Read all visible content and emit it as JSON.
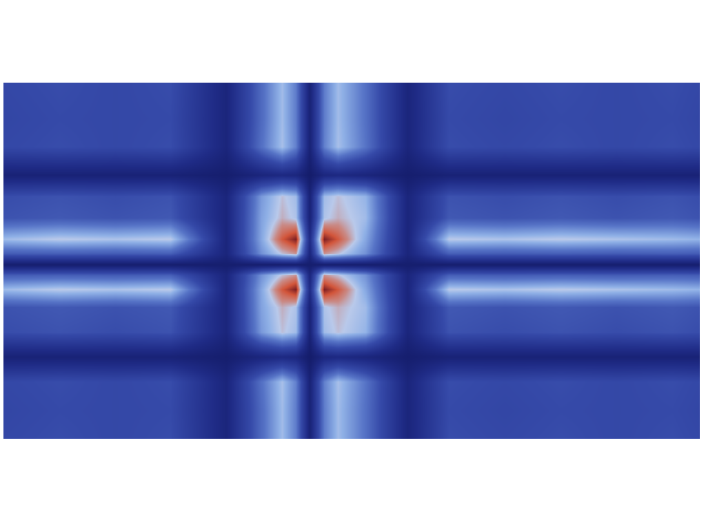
{
  "chart_data": {
    "type": "heatmap",
    "x": [
      0,
      8,
      16,
      24,
      32,
      37,
      40,
      42,
      44,
      46,
      48,
      52,
      58,
      64,
      72,
      80,
      88,
      96,
      100
    ],
    "y": [
      0,
      8,
      16,
      23,
      30,
      37,
      42,
      46,
      49,
      52,
      56,
      62,
      68,
      74,
      82,
      90,
      100
    ],
    "cells": [
      [
        0.38,
        0.4,
        0.38,
        0.4,
        0.15,
        0.5,
        0.7,
        0.55,
        0.12,
        0.55,
        0.7,
        0.52,
        0.15,
        0.4,
        0.38,
        0.4,
        0.38,
        0.4,
        0.38
      ],
      [
        0.37,
        0.39,
        0.38,
        0.39,
        0.15,
        0.5,
        0.7,
        0.55,
        0.12,
        0.55,
        0.7,
        0.52,
        0.15,
        0.39,
        0.37,
        0.39,
        0.38,
        0.39,
        0.37
      ],
      [
        0.38,
        0.4,
        0.38,
        0.4,
        0.15,
        0.52,
        0.71,
        0.56,
        0.12,
        0.56,
        0.71,
        0.53,
        0.15,
        0.4,
        0.38,
        0.4,
        0.38,
        0.4,
        0.38
      ],
      [
        0.12,
        0.12,
        0.12,
        0.12,
        0.08,
        0.15,
        0.18,
        0.16,
        0.06,
        0.16,
        0.18,
        0.15,
        0.08,
        0.12,
        0.12,
        0.12,
        0.12,
        0.12,
        0.12
      ],
      [
        0.4,
        0.42,
        0.4,
        0.42,
        0.15,
        0.62,
        0.75,
        0.7,
        0.12,
        0.7,
        0.75,
        0.68,
        0.15,
        0.42,
        0.4,
        0.42,
        0.4,
        0.42,
        0.4
      ],
      [
        0.42,
        0.44,
        0.42,
        0.44,
        0.15,
        0.64,
        0.77,
        0.72,
        0.12,
        0.72,
        0.77,
        0.7,
        0.15,
        0.44,
        0.42,
        0.44,
        0.42,
        0.44,
        0.42
      ],
      [
        0.7,
        0.74,
        0.72,
        0.74,
        0.15,
        0.65,
        0.9,
        1.0,
        0.2,
        1.0,
        0.9,
        0.65,
        0.15,
        0.74,
        0.72,
        0.74,
        0.72,
        0.7,
        0.68
      ],
      [
        0.45,
        0.46,
        0.45,
        0.46,
        0.15,
        0.6,
        0.75,
        0.8,
        0.15,
        0.8,
        0.75,
        0.6,
        0.15,
        0.46,
        0.45,
        0.46,
        0.45,
        0.46,
        0.45
      ],
      [
        0.08,
        0.08,
        0.08,
        0.08,
        0.08,
        0.08,
        0.08,
        0.08,
        0.08,
        0.08,
        0.08,
        0.08,
        0.08,
        0.08,
        0.08,
        0.08,
        0.08,
        0.08,
        0.08
      ],
      [
        0.45,
        0.46,
        0.45,
        0.46,
        0.15,
        0.6,
        0.75,
        0.8,
        0.15,
        0.8,
        0.75,
        0.6,
        0.15,
        0.46,
        0.45,
        0.46,
        0.45,
        0.46,
        0.45
      ],
      [
        0.7,
        0.74,
        0.72,
        0.74,
        0.15,
        0.65,
        0.9,
        1.0,
        0.2,
        1.0,
        0.9,
        0.65,
        0.15,
        0.74,
        0.72,
        0.74,
        0.72,
        0.7,
        0.68
      ],
      [
        0.42,
        0.44,
        0.42,
        0.44,
        0.15,
        0.64,
        0.77,
        0.72,
        0.12,
        0.72,
        0.77,
        0.7,
        0.15,
        0.44,
        0.42,
        0.44,
        0.42,
        0.44,
        0.42
      ],
      [
        0.4,
        0.42,
        0.4,
        0.42,
        0.15,
        0.62,
        0.75,
        0.7,
        0.12,
        0.7,
        0.75,
        0.68,
        0.15,
        0.42,
        0.4,
        0.42,
        0.4,
        0.42,
        0.4
      ],
      [
        0.12,
        0.12,
        0.12,
        0.12,
        0.08,
        0.15,
        0.18,
        0.16,
        0.06,
        0.16,
        0.18,
        0.15,
        0.08,
        0.12,
        0.12,
        0.12,
        0.12,
        0.12,
        0.12
      ],
      [
        0.38,
        0.4,
        0.38,
        0.4,
        0.15,
        0.52,
        0.71,
        0.56,
        0.12,
        0.56,
        0.71,
        0.53,
        0.15,
        0.4,
        0.38,
        0.4,
        0.38,
        0.4,
        0.38
      ],
      [
        0.37,
        0.39,
        0.38,
        0.39,
        0.15,
        0.5,
        0.7,
        0.55,
        0.12,
        0.55,
        0.7,
        0.52,
        0.15,
        0.39,
        0.37,
        0.39,
        0.38,
        0.39,
        0.37
      ],
      [
        0.38,
        0.4,
        0.38,
        0.4,
        0.15,
        0.5,
        0.7,
        0.55,
        0.12,
        0.55,
        0.7,
        0.52,
        0.15,
        0.4,
        0.38,
        0.4,
        0.38,
        0.4,
        0.38
      ]
    ],
    "xlim": [
      0,
      100
    ],
    "ylim": [
      0,
      100
    ],
    "tick_labels": false
  }
}
